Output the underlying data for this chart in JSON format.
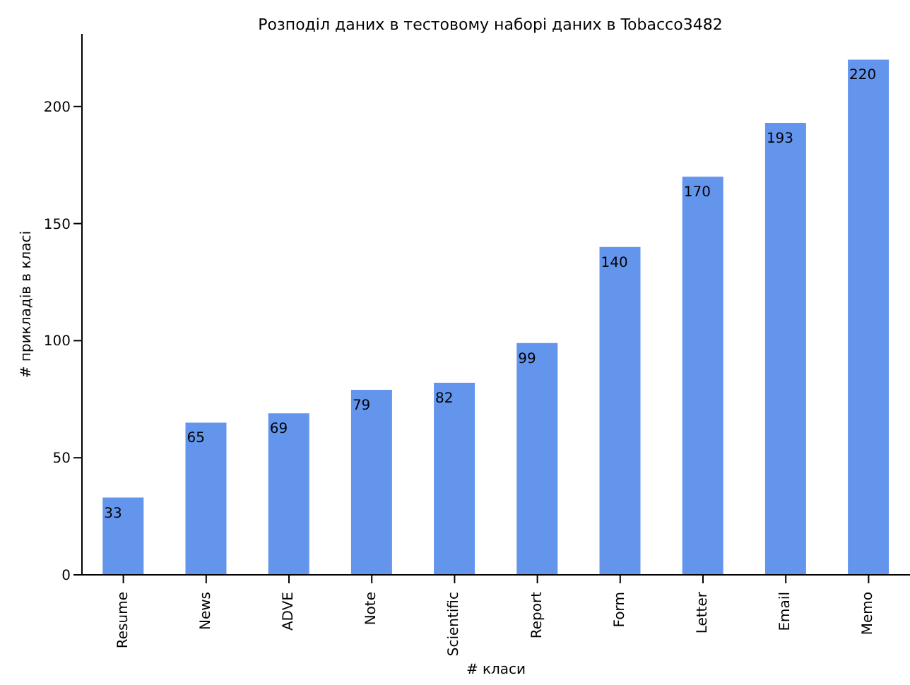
{
  "chart_data": {
    "type": "bar",
    "title": "Розподіл даних в тестовому наборі даних в Tobacco3482",
    "xlabel": "# класи",
    "ylabel": "# прикладів в класі",
    "categories": [
      "Resume",
      "News",
      "ADVE",
      "Note",
      "Scientific",
      "Report",
      "Form",
      "Letter",
      "Email",
      "Memo"
    ],
    "values": [
      33,
      65,
      69,
      79,
      82,
      99,
      140,
      170,
      193,
      220
    ],
    "color": "#6495ed",
    "ylim": [
      0,
      231
    ],
    "yticks": [
      0,
      50,
      100,
      150,
      200
    ],
    "grid": false,
    "data_labels": true
  }
}
